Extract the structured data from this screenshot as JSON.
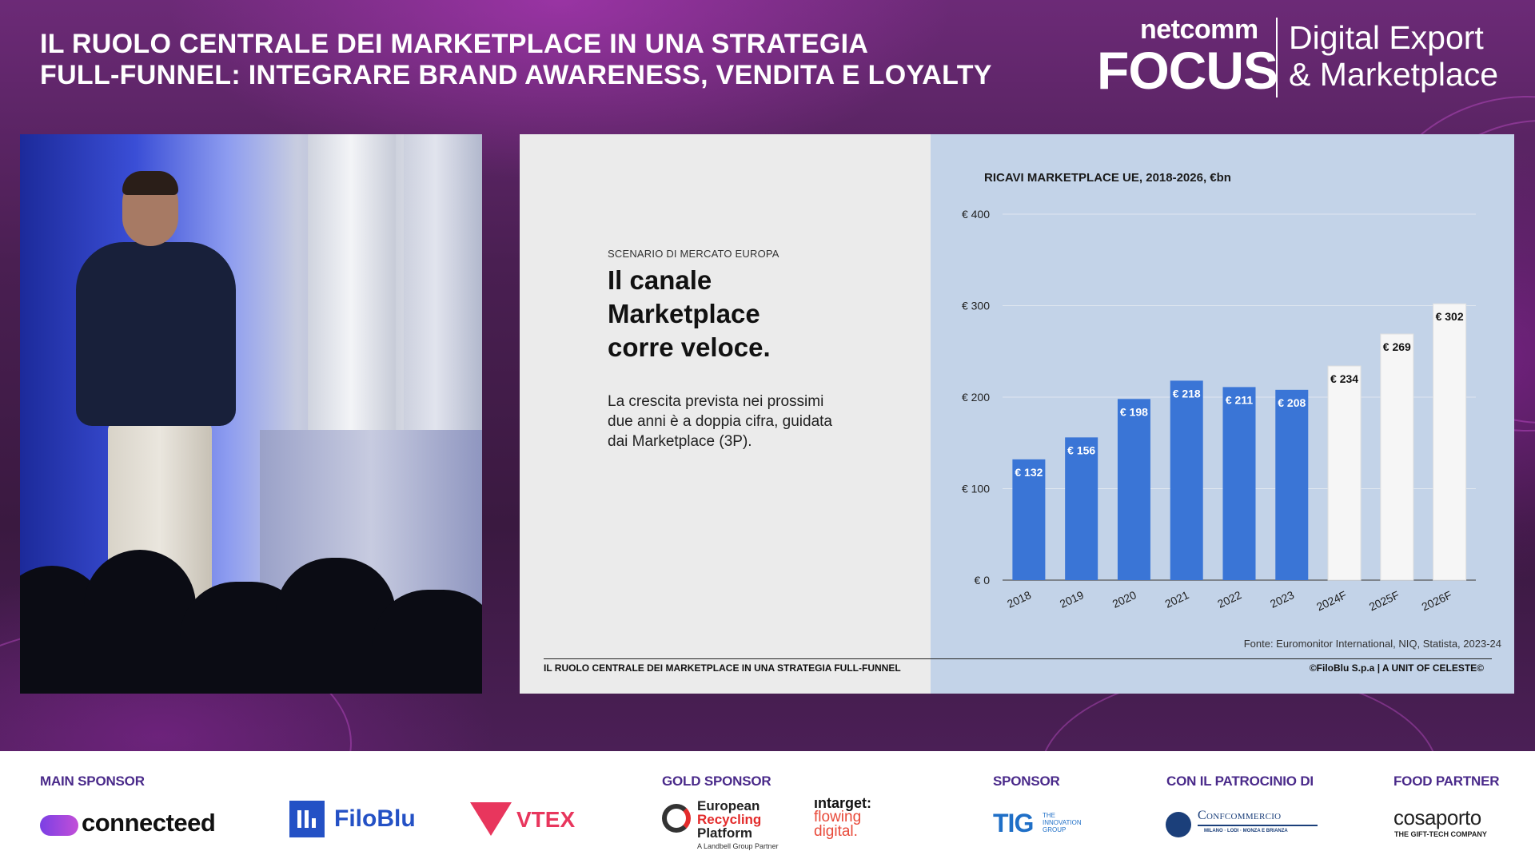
{
  "header": {
    "headline_line1": "IL RUOLO CENTRALE DEI MARKETPLACE IN UNA STRATEGIA",
    "headline_line2": "FULL-FUNNEL: INTEGRARE BRAND AWARENESS, VENDITA E LOYALTY",
    "brand_small": "netcomm",
    "brand_big": "FOCUS",
    "event_line1": "Digital Export",
    "event_line2": "& Marketplace"
  },
  "slide": {
    "kicker": "SCENARIO DI MERCATO EUROPA",
    "title_line1": "Il canale",
    "title_line2": "Marketplace",
    "title_line3": "corre veloce.",
    "body": "La crescita prevista nei prossimi due anni è a doppia cifra, guidata dai Marketplace (3P).",
    "source": "Fonte: Euromonitor International, NIQ, Statista, 2023-24",
    "footer_left": "IL RUOLO CENTRALE DEI MARKETPLACE IN UNA STRATEGIA FULL-FUNNEL",
    "footer_right": "©FiloBlu S.p.a | A UNIT OF CELESTE©"
  },
  "chart_data": {
    "type": "bar",
    "title": "RICAVI MARKETPLACE UE, 2018-2026, €bn",
    "categories": [
      "2018",
      "2019",
      "2020",
      "2021",
      "2022",
      "2023",
      "2024F",
      "2025F",
      "2026F"
    ],
    "values": [
      132,
      156,
      198,
      218,
      211,
      208,
      234,
      269,
      302
    ],
    "data_labels": [
      "€ 132",
      "€ 156",
      "€ 198",
      "€ 218",
      "€ 211",
      "€ 208",
      "€ 234",
      "€ 269",
      "€ 302"
    ],
    "forecast_from_index": 6,
    "ylim": [
      0,
      400
    ],
    "yticks": [
      0,
      100,
      200,
      300,
      400
    ],
    "ytick_labels": [
      "€ 0",
      "€ 100",
      "€ 200",
      "€ 300",
      "€ 400"
    ],
    "grid": true,
    "colors": {
      "actual": "#3a75d6",
      "forecast": "#f6f6f6"
    }
  },
  "sponsors": {
    "main_label": "MAIN SPONSOR",
    "gold_label": "GOLD SPONSOR",
    "sponsor_label": "SPONSOR",
    "patronage_label": "CON IL PATROCINIO DI",
    "food_label": "FOOD PARTNER",
    "connecteed": "connecteed",
    "filoblu": "FiloBlu",
    "vtex": "VTEX",
    "erp_line1": "European",
    "erp_line2": "Recycling",
    "erp_line3": "Platform",
    "erp_sub": "A Landbell Group Partner",
    "intarget_line1": "ıntarget:",
    "intarget_line2": "flowing",
    "intarget_line3": "digital.",
    "tig": "TIG",
    "tig_sub1": "THE",
    "tig_sub2": "INNOVATION",
    "tig_sub3": "GROUP",
    "confcommercio": "Confcommercio",
    "confcommercio_sub": "MILANO · LODI · MONZA E BRIANZA",
    "cosaporto": "cosaporto",
    "cosaporto_sub": "THE GIFT-TECH COMPANY"
  }
}
